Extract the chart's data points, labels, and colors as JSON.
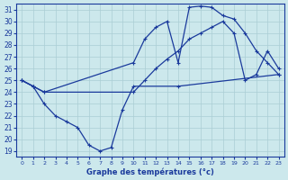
{
  "xlabel": "Graphe des températures (°c)",
  "xlim": [
    -0.5,
    23.5
  ],
  "ylim": [
    18.5,
    31.5
  ],
  "yticks": [
    19,
    20,
    21,
    22,
    23,
    24,
    25,
    26,
    27,
    28,
    29,
    30,
    31
  ],
  "xticks": [
    0,
    1,
    2,
    3,
    4,
    5,
    6,
    7,
    8,
    9,
    10,
    11,
    12,
    13,
    14,
    15,
    16,
    17,
    18,
    19,
    20,
    21,
    22,
    23
  ],
  "background_color": "#cce8ec",
  "grid_color": "#aacdd4",
  "line_color": "#1a3a9c",
  "curve1_x": [
    0,
    1,
    2,
    10,
    11,
    12,
    13,
    14,
    15,
    16,
    17,
    18,
    19,
    20,
    21,
    22,
    23
  ],
  "curve1_y": [
    25.0,
    24.5,
    24.0,
    26.5,
    28.5,
    29.5,
    30.0,
    26.5,
    31.2,
    31.3,
    31.2,
    30.5,
    30.2,
    29.0,
    27.5,
    26.5,
    25.5
  ],
  "curve2_x": [
    0,
    1,
    2,
    3,
    4,
    5,
    6,
    7,
    8,
    9,
    10,
    14,
    23
  ],
  "curve2_y": [
    25.0,
    24.5,
    23.0,
    22.0,
    21.5,
    21.0,
    19.5,
    19.0,
    19.3,
    22.5,
    24.5,
    24.5,
    25.5
  ],
  "curve3_x": [
    0,
    1,
    2,
    10,
    11,
    12,
    13,
    14,
    15,
    16,
    17,
    18,
    19,
    20,
    21,
    22,
    23
  ],
  "curve3_y": [
    25.0,
    24.5,
    24.0,
    24.0,
    25.0,
    26.0,
    26.8,
    27.5,
    28.5,
    29.0,
    29.5,
    30.0,
    29.0,
    25.0,
    25.5,
    27.5,
    26.0
  ]
}
